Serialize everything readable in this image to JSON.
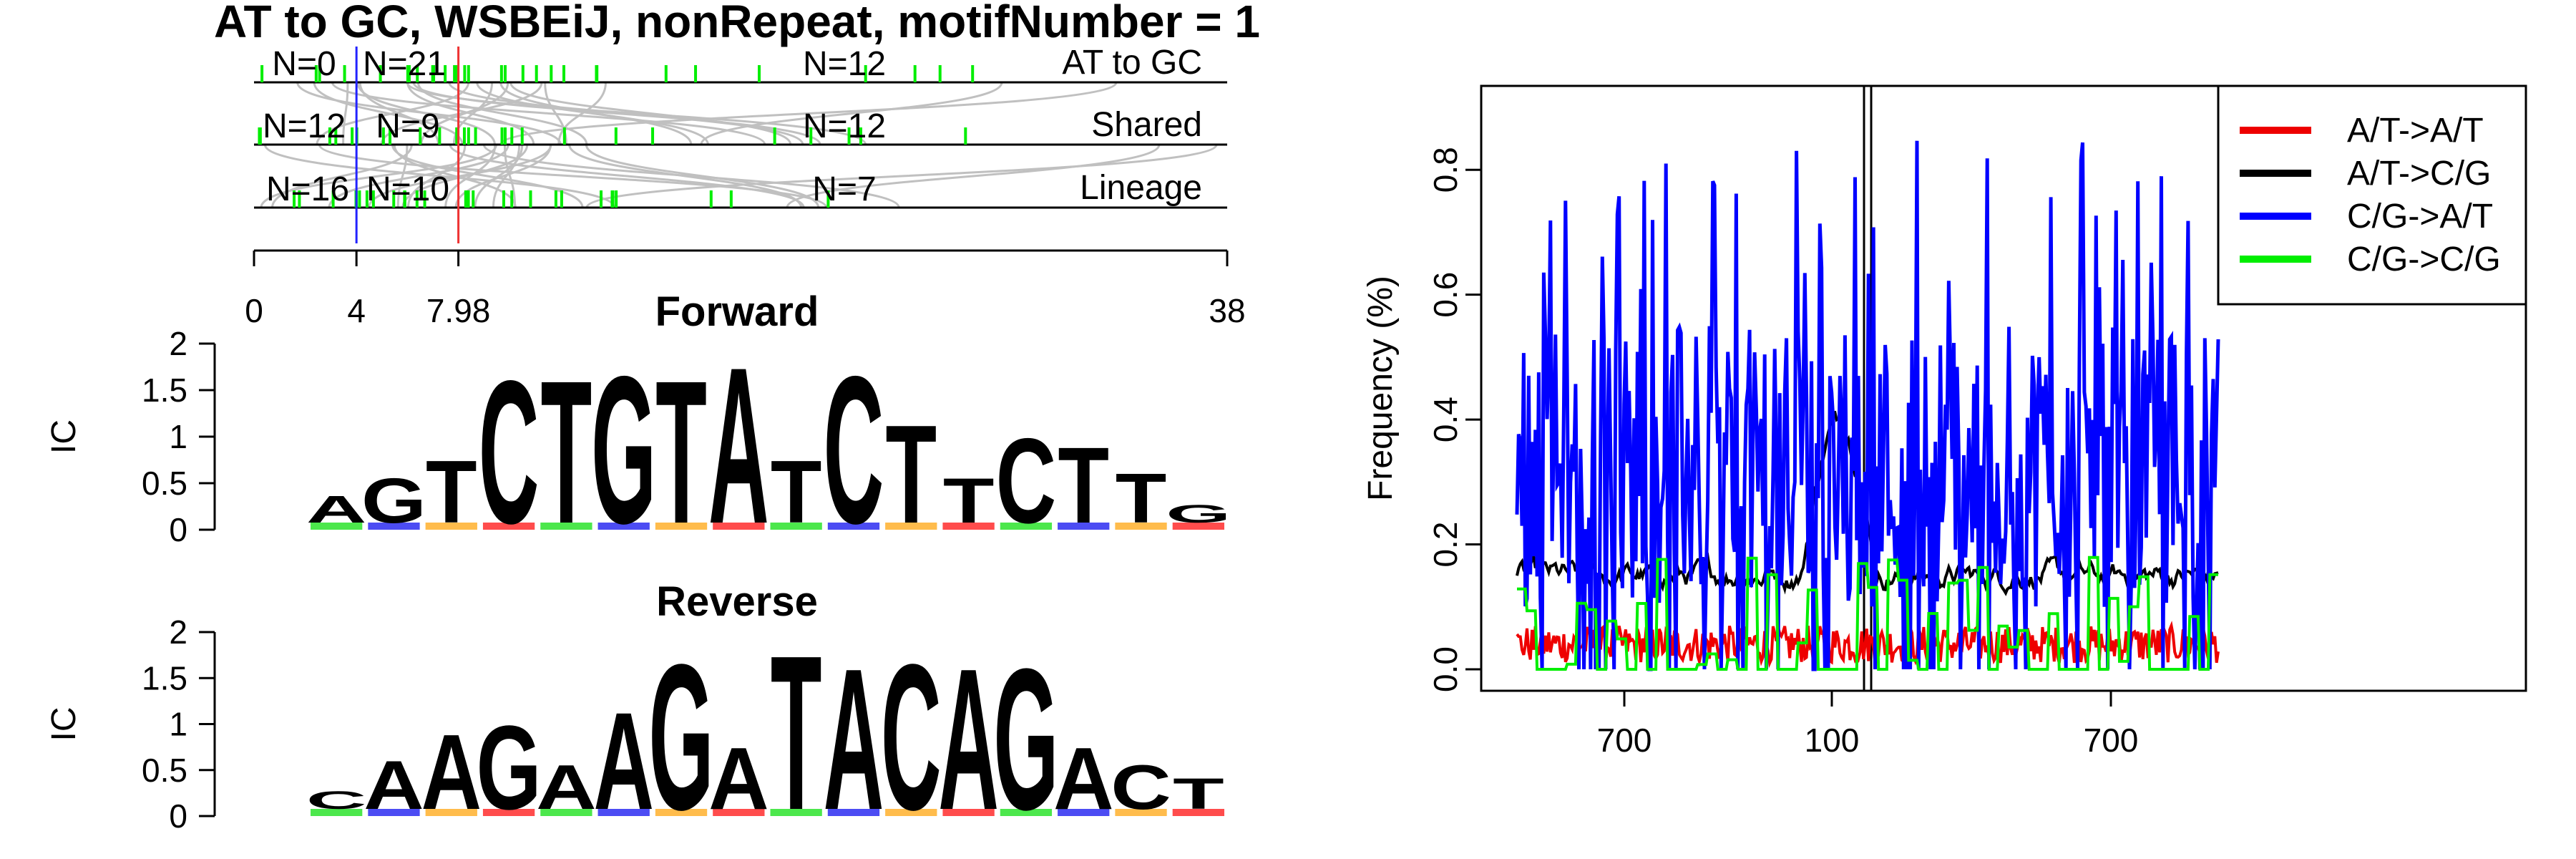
{
  "colors": {
    "A": "#00dd00",
    "C": "#0000ee",
    "G": "#ffa000",
    "T": "#ff0000",
    "red": "#ee0000",
    "black": "#000000",
    "blue": "#0000ff",
    "green": "#00ee00",
    "blue_line": "#2222ff",
    "red_line": "#ee3333",
    "connector": "#c0c0c0"
  },
  "chart_data": [
    {
      "type": "diagram",
      "title": "AT to GC, WSBEiJ, nonRepeat, motifNumber = 1",
      "rows": [
        {
          "name": "AT to GC",
          "counts": [
            "N=0",
            "N=21",
            "N=12"
          ]
        },
        {
          "name": "Shared",
          "counts": [
            "N=12",
            "N=9",
            "N=12"
          ]
        },
        {
          "name": "Lineage",
          "counts": [
            "N=16",
            "N=10",
            "N=7"
          ]
        }
      ],
      "axis_ticks": [
        "0",
        "4",
        "7.98",
        "38"
      ],
      "xlim": [
        0,
        38
      ],
      "markers": {
        "blue": 4,
        "red": 7.98
      }
    },
    {
      "type": "sequence-logo",
      "title": "Forward",
      "ylabel": "IC",
      "ylim": [
        0,
        2
      ],
      "yticks": [
        "0",
        "0.5",
        "1",
        "1.5",
        "2"
      ],
      "positions": [
        {
          "letter": "A",
          "ic": 0.3
        },
        {
          "letter": "G",
          "ic": 0.5
        },
        {
          "letter": "T",
          "ic": 0.7
        },
        {
          "letter": "C",
          "ic": 1.6
        },
        {
          "letter": "T",
          "ic": 1.6
        },
        {
          "letter": "G",
          "ic": 1.65
        },
        {
          "letter": "T",
          "ic": 1.6
        },
        {
          "letter": "A",
          "ic": 1.75
        },
        {
          "letter": "T",
          "ic": 0.7
        },
        {
          "letter": "C",
          "ic": 1.65
        },
        {
          "letter": "T",
          "ic": 1.1
        },
        {
          "letter": "T",
          "ic": 0.5
        },
        {
          "letter": "C",
          "ic": 0.95
        },
        {
          "letter": "T",
          "ic": 0.85
        },
        {
          "letter": "T",
          "ic": 0.55
        },
        {
          "letter": "G",
          "ic": 0.2
        }
      ]
    },
    {
      "type": "sequence-logo",
      "title": "Reverse",
      "ylabel": "IC",
      "ylim": [
        0,
        2
      ],
      "yticks": [
        "0",
        "0.5",
        "1",
        "1.5",
        "2"
      ],
      "positions": [
        {
          "letter": "C",
          "ic": 0.2
        },
        {
          "letter": "A",
          "ic": 0.55
        },
        {
          "letter": "A",
          "ic": 0.85
        },
        {
          "letter": "G",
          "ic": 0.95
        },
        {
          "letter": "A",
          "ic": 0.5
        },
        {
          "letter": "A",
          "ic": 1.1
        },
        {
          "letter": "G",
          "ic": 1.65
        },
        {
          "letter": "A",
          "ic": 0.7
        },
        {
          "letter": "T",
          "ic": 1.75
        },
        {
          "letter": "A",
          "ic": 1.6
        },
        {
          "letter": "C",
          "ic": 1.65
        },
        {
          "letter": "A",
          "ic": 1.6
        },
        {
          "letter": "G",
          "ic": 1.6
        },
        {
          "letter": "A",
          "ic": 0.7
        },
        {
          "letter": "C",
          "ic": 0.5
        },
        {
          "letter": "T",
          "ic": 0.35
        }
      ]
    },
    {
      "type": "line",
      "ylabel": "Frequency (%)",
      "xlabel": "",
      "ylim": [
        0,
        0.9
      ],
      "yticks": [
        "0.0",
        "0.2",
        "0.4",
        "0.6",
        "0.8"
      ],
      "xticks": [
        "700",
        "100",
        "700"
      ],
      "x_segments": [
        [
          0,
          800
        ],
        [
          0,
          800
        ]
      ],
      "legend_position": "top-right",
      "series": [
        {
          "name": "A/T->A/T",
          "color": "#ee0000",
          "kind": "noise",
          "base": 0.04,
          "amp": 0.03
        },
        {
          "name": "A/T->C/G",
          "color": "#000000",
          "kind": "smooth",
          "base": 0.15,
          "amp": 0.04
        },
        {
          "name": "C/G->A/T",
          "color": "#0000ff",
          "kind": "spiky",
          "base": 0.4,
          "amp": 0.3
        },
        {
          "name": "C/G->C/G",
          "color": "#00ee00",
          "kind": "steps",
          "base": 0.05,
          "amp": 0.1
        }
      ]
    }
  ]
}
